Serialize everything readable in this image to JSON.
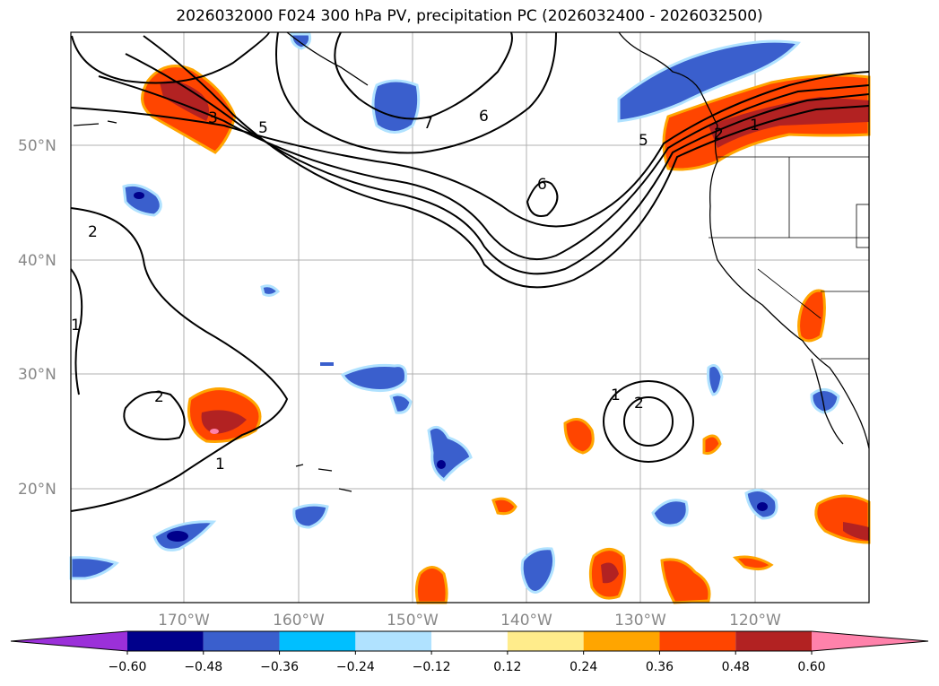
{
  "title": "2026032000 F024 300 hPa PV, precipitation PC (2026032400 - 2026032500)",
  "map": {
    "lon_labels": [
      "170°W",
      "160°W",
      "150°W",
      "140°W",
      "130°W",
      "120°W"
    ],
    "lat_labels": [
      "50°N",
      "40°N",
      "30°N",
      "20°N"
    ],
    "contour_labels": [
      "3",
      "5",
      "7",
      "6",
      "6",
      "5",
      "2",
      "1",
      "2",
      "1",
      "2",
      "1",
      "2",
      "1"
    ]
  },
  "colorbar": {
    "ticks": [
      "−0.60",
      "−0.48",
      "−0.36",
      "−0.24",
      "−0.12",
      "0.12",
      "0.24",
      "0.36",
      "0.48",
      "0.60"
    ],
    "colors": [
      "#9b30d9",
      "#00008b",
      "#3a5fcd",
      "#00bfff",
      "#b0e2ff",
      "#ffffff",
      "#ffec8b",
      "#ffa500",
      "#ff4500",
      "#b22222",
      "#ff82ab"
    ]
  },
  "colors": {
    "contour": "#000000",
    "coast": "#000000",
    "grid": "#b0b0b0",
    "frame": "#000000"
  }
}
